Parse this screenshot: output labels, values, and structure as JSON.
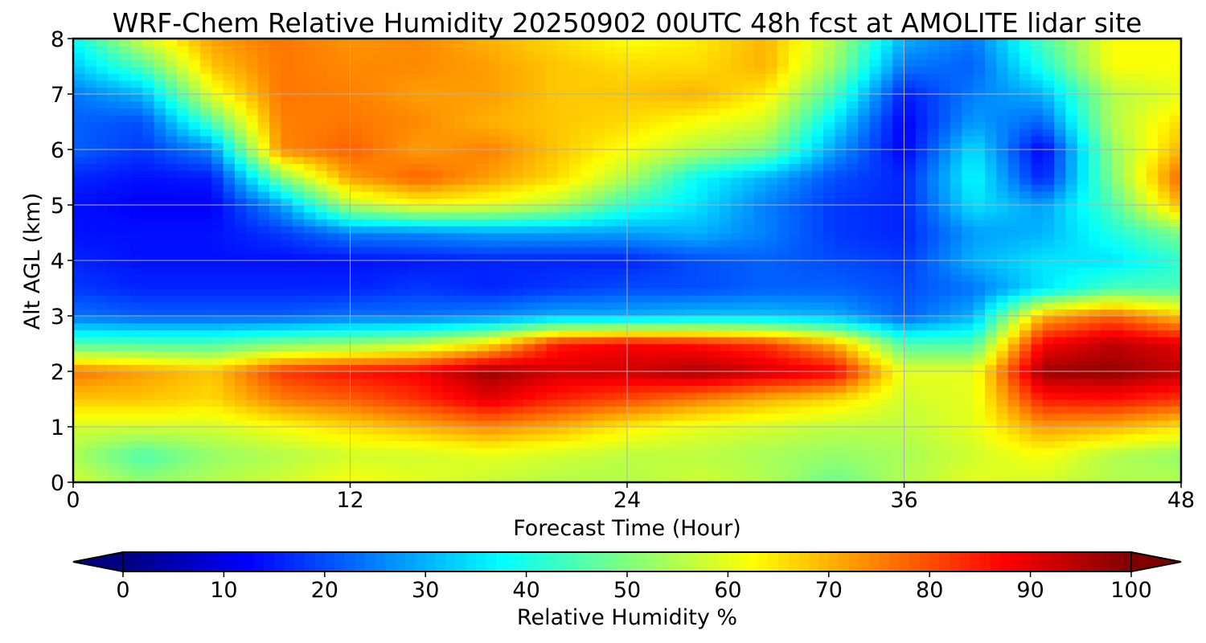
{
  "chart_data": {
    "type": "heatmap",
    "title": "WRF-Chem Relative Humidity 20250902 00UTC 48h fcst at AMOLITE lidar site",
    "xlabel": "Forecast Time (Hour)",
    "ylabel": "Alt AGL (km)",
    "xlim": [
      0,
      48
    ],
    "ylim": [
      0,
      8
    ],
    "x_ticks": [
      "0",
      "12",
      "24",
      "36",
      "48"
    ],
    "y_ticks": [
      "0",
      "1",
      "2",
      "3",
      "4",
      "5",
      "6",
      "7",
      "8"
    ],
    "grid": true,
    "colormap": "jet",
    "colorbar": {
      "label": "Relative Humidity %",
      "orientation": "horizontal",
      "placement": "bottom",
      "range": [
        0,
        100
      ],
      "extend": "both",
      "ticks": [
        "0",
        "10",
        "20",
        "30",
        "40",
        "50",
        "60",
        "70",
        "80",
        "90",
        "100"
      ]
    },
    "x": [
      0,
      3,
      6,
      9,
      12,
      15,
      18,
      21,
      24,
      27,
      30,
      33,
      36,
      39,
      42,
      45,
      48
    ],
    "y": [
      0,
      0.5,
      1,
      1.5,
      2,
      2.5,
      3,
      3.5,
      4,
      4.5,
      5,
      5.5,
      6,
      6.5,
      7,
      7.5,
      8
    ],
    "z": [
      [
        58,
        52,
        55,
        58,
        62,
        60,
        57,
        55,
        55,
        58,
        55,
        48,
        55,
        60,
        58,
        55,
        55
      ],
      [
        54,
        45,
        52,
        55,
        58,
        58,
        60,
        58,
        56,
        56,
        54,
        52,
        54,
        58,
        62,
        55,
        52
      ],
      [
        58,
        58,
        58,
        62,
        66,
        70,
        74,
        70,
        64,
        60,
        58,
        56,
        56,
        60,
        72,
        70,
        65
      ],
      [
        68,
        68,
        66,
        75,
        78,
        83,
        90,
        84,
        80,
        75,
        70,
        66,
        58,
        60,
        85,
        86,
        82
      ],
      [
        76,
        72,
        68,
        82,
        86,
        88,
        97,
        92,
        92,
        96,
        92,
        88,
        60,
        60,
        97,
        98,
        94
      ],
      [
        45,
        45,
        45,
        50,
        52,
        56,
        65,
        85,
        88,
        86,
        82,
        70,
        45,
        45,
        88,
        94,
        90
      ],
      [
        24,
        22,
        22,
        22,
        24,
        24,
        26,
        30,
        30,
        32,
        32,
        30,
        22,
        30,
        70,
        78,
        68
      ],
      [
        18,
        16,
        16,
        16,
        16,
        18,
        16,
        18,
        20,
        20,
        22,
        22,
        20,
        24,
        35,
        45,
        45
      ],
      [
        16,
        14,
        14,
        14,
        14,
        15,
        16,
        16,
        16,
        20,
        22,
        20,
        18,
        30,
        35,
        35,
        42
      ],
      [
        14,
        14,
        14,
        18,
        25,
        26,
        28,
        28,
        28,
        30,
        25,
        18,
        16,
        28,
        30,
        40,
        50
      ],
      [
        14,
        12,
        12,
        28,
        55,
        62,
        60,
        55,
        42,
        35,
        25,
        18,
        16,
        35,
        28,
        45,
        70
      ],
      [
        16,
        14,
        15,
        50,
        72,
        78,
        72,
        66,
        55,
        38,
        30,
        20,
        16,
        38,
        15,
        50,
        78
      ],
      [
        22,
        18,
        26,
        74,
        78,
        72,
        75,
        68,
        62,
        55,
        50,
        28,
        12,
        35,
        12,
        52,
        70
      ],
      [
        22,
        20,
        45,
        75,
        76,
        74,
        70,
        68,
        66,
        62,
        58,
        35,
        12,
        28,
        22,
        55,
        66
      ],
      [
        24,
        30,
        60,
        76,
        75,
        72,
        72,
        68,
        68,
        70,
        64,
        44,
        15,
        25,
        30,
        55,
        60
      ],
      [
        32,
        45,
        68,
        76,
        74,
        74,
        72,
        68,
        66,
        66,
        70,
        52,
        24,
        22,
        40,
        62,
        62
      ],
      [
        38,
        58,
        72,
        76,
        73,
        74,
        70,
        66,
        62,
        64,
        70,
        55,
        30,
        24,
        45,
        62,
        62
      ]
    ]
  }
}
